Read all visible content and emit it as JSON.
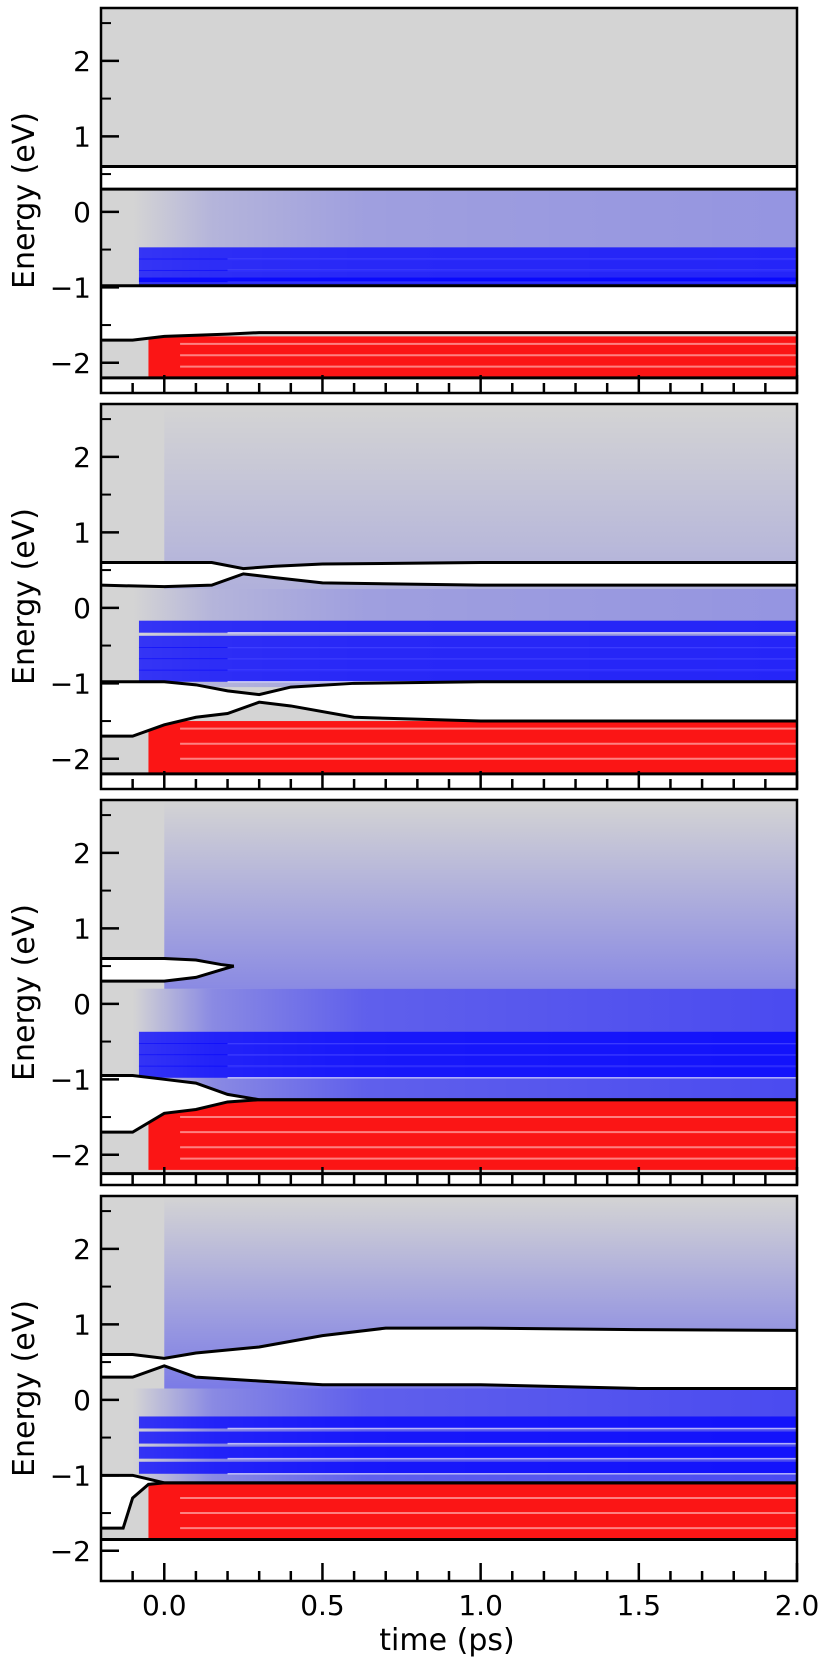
{
  "figure": {
    "xlabel": "time (ps)",
    "ylabel": "Energy (eV)"
  },
  "colors": {
    "background_gray": "#d4d4d4",
    "gap_white": "#ffffff",
    "electron_blue": "#0000ff",
    "hole_red": "#ff0000",
    "edge_black": "#000000"
  },
  "chart_data": [
    {
      "type": "heatmap",
      "panel": 1,
      "title": "",
      "xlabel": "",
      "ylabel": "Energy (eV)",
      "xlim": [
        -0.2,
        2.0
      ],
      "ylim": [
        -2.4,
        2.7
      ],
      "x_ticks": [
        0.0,
        0.5,
        1.0,
        1.5,
        2.0
      ],
      "y_ticks": [
        -2,
        -1,
        0,
        1,
        2
      ],
      "y_tick_labels": [
        "−2",
        "−1",
        "0",
        "1",
        "2"
      ],
      "gap_upper": {
        "x": [
          -0.2,
          2.0
        ],
        "lower": [
          0.3,
          0.3
        ],
        "upper": [
          0.6,
          0.6
        ]
      },
      "gap_lower": {
        "x": [
          -0.2,
          -0.1,
          0.0,
          0.2,
          0.3,
          0.5,
          2.0
        ],
        "lower": [
          -1.7,
          -1.7,
          -1.65,
          -1.62,
          -1.6,
          -1.6,
          -1.6
        ],
        "upper": [
          -0.98,
          -0.98,
          -0.98,
          -0.98,
          -0.98,
          -0.98,
          -0.98
        ]
      },
      "blue_bands": [
        -0.55,
        -0.7,
        -0.85,
        -0.95
      ],
      "red_bands": [
        -1.75,
        -1.9,
        -2.05
      ],
      "electron_range": [
        -1.02,
        0.28
      ],
      "hole_range": [
        -2.2,
        -1.65
      ],
      "bottom_edge": -2.2
    },
    {
      "type": "heatmap",
      "panel": 2,
      "title": "",
      "xlabel": "",
      "ylabel": "Energy (eV)",
      "xlim": [
        -0.2,
        2.0
      ],
      "ylim": [
        -2.4,
        2.7
      ],
      "x_ticks": [
        0.0,
        0.5,
        1.0,
        1.5,
        2.0
      ],
      "y_ticks": [
        -2,
        -1,
        0,
        1,
        2
      ],
      "y_tick_labels": [
        "−2",
        "−1",
        "0",
        "1",
        "2"
      ],
      "gap_upper": {
        "x": [
          -0.2,
          0.0,
          0.15,
          0.25,
          0.35,
          0.5,
          1.0,
          2.0
        ],
        "lower": [
          0.3,
          0.28,
          0.3,
          0.45,
          0.4,
          0.33,
          0.3,
          0.3
        ],
        "upper": [
          0.6,
          0.6,
          0.6,
          0.52,
          0.55,
          0.58,
          0.6,
          0.6
        ]
      },
      "gap_lower": {
        "x": [
          -0.2,
          -0.1,
          0.0,
          0.1,
          0.2,
          0.3,
          0.4,
          0.6,
          1.0,
          2.0
        ],
        "lower": [
          -1.7,
          -1.7,
          -1.55,
          -1.45,
          -1.4,
          -1.25,
          -1.3,
          -1.45,
          -1.5,
          -1.5
        ],
        "upper": [
          -0.98,
          -0.98,
          -0.98,
          -1.02,
          -1.1,
          -1.15,
          -1.05,
          -1.0,
          -0.98,
          -0.98
        ]
      },
      "blue_bands": [
        -0.25,
        -0.45,
        -0.6,
        -0.75,
        -0.9
      ],
      "red_bands": [
        -1.6,
        -1.8,
        -2.0
      ],
      "electron_range": [
        -1.05,
        0.25
      ],
      "hole_range": [
        -2.2,
        -1.5
      ],
      "bottom_edge": -2.2
    },
    {
      "type": "heatmap",
      "panel": 3,
      "title": "",
      "xlabel": "",
      "ylabel": "Energy (eV)",
      "xlim": [
        -0.2,
        2.0
      ],
      "ylim": [
        -2.4,
        2.7
      ],
      "x_ticks": [
        0.0,
        0.5,
        1.0,
        1.5,
        2.0
      ],
      "y_ticks": [
        -2,
        -1,
        0,
        1,
        2
      ],
      "y_tick_labels": [
        "−2",
        "−1",
        "0",
        "1",
        "2"
      ],
      "gap_upper": {
        "x": [
          -0.2,
          0.0,
          0.1,
          0.18,
          0.22
        ],
        "lower": [
          0.3,
          0.3,
          0.35,
          0.45,
          0.5
        ],
        "upper": [
          0.6,
          0.6,
          0.58,
          0.52,
          0.5
        ]
      },
      "gap_lower": {
        "x": [
          -0.2,
          -0.1,
          0.0,
          0.1,
          0.2,
          0.3,
          2.0
        ],
        "lower": [
          -1.7,
          -1.7,
          -1.45,
          -1.4,
          -1.3,
          -1.27,
          -1.27
        ],
        "upper": [
          -0.95,
          -0.95,
          -1.0,
          -1.05,
          -1.2,
          -1.27,
          -1.27
        ]
      },
      "blue_bands": [
        -0.45,
        -0.6,
        -0.75,
        -0.9
      ],
      "red_bands": [
        -1.5,
        -1.7,
        -1.9,
        -2.05
      ],
      "electron_range": [
        -1.27,
        0.2
      ],
      "hole_range": [
        -2.2,
        -1.27
      ],
      "bottom_edge": -2.25
    },
    {
      "type": "heatmap",
      "panel": 4,
      "title": "",
      "xlabel": "time (ps)",
      "ylabel": "Energy (eV)",
      "xlim": [
        -0.2,
        2.0
      ],
      "ylim": [
        -2.4,
        2.7
      ],
      "x_ticks": [
        0.0,
        0.5,
        1.0,
        1.5,
        2.0
      ],
      "x_tick_labels": [
        "0.0",
        "0.5",
        "1.0",
        "1.5",
        "2.0"
      ],
      "y_ticks": [
        -2,
        -1,
        0,
        1,
        2
      ],
      "y_tick_labels": [
        "−2",
        "−1",
        "0",
        "1",
        "2"
      ],
      "gap_upper": {
        "x": [
          -0.2,
          -0.1,
          0.0,
          0.1,
          0.3,
          0.5,
          0.7,
          1.0,
          1.5,
          2.0
        ],
        "lower": [
          0.3,
          0.3,
          0.45,
          0.3,
          0.25,
          0.2,
          0.2,
          0.2,
          0.15,
          0.15
        ],
        "upper": [
          0.6,
          0.6,
          0.55,
          0.62,
          0.7,
          0.85,
          0.95,
          0.95,
          0.93,
          0.92
        ]
      },
      "gap_lower": {
        "x": [
          -0.2,
          -0.13,
          -0.1,
          -0.05,
          0.0,
          0.05,
          2.0
        ],
        "lower": [
          -1.7,
          -1.7,
          -1.3,
          -1.12,
          -1.1,
          -1.1,
          -1.1
        ],
        "upper": [
          -1.0,
          -1.0,
          -1.0,
          -1.05,
          -1.1,
          -1.1,
          -1.1
        ]
      },
      "blue_bands": [
        -0.3,
        -0.5,
        -0.7,
        -0.9
      ],
      "red_bands": [
        -1.3,
        -1.5,
        -1.7
      ],
      "electron_range": [
        -1.1,
        0.15
      ],
      "hole_range": [
        -1.85,
        -1.1
      ],
      "bottom_edge": -1.85
    }
  ]
}
